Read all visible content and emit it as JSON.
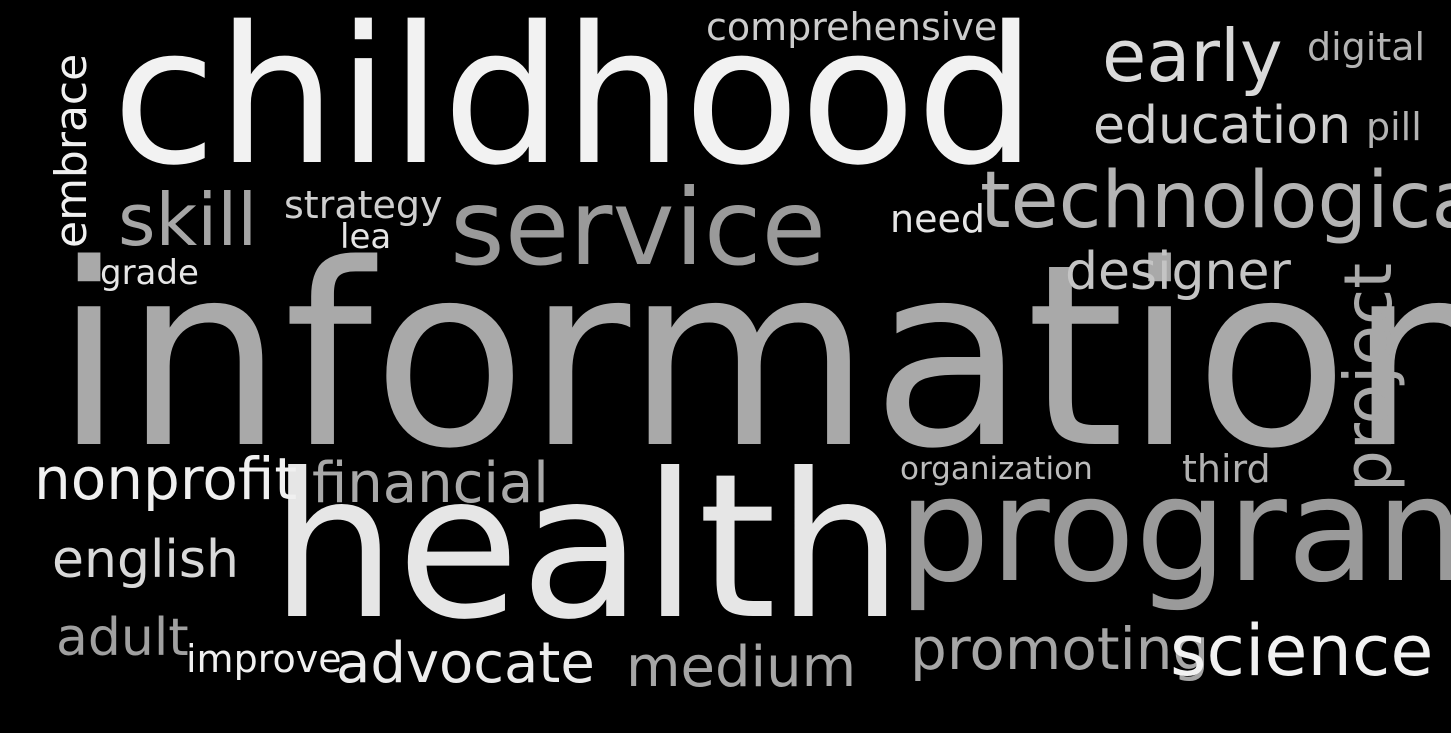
{
  "background": "#000000",
  "words": [
    {
      "id": "information",
      "text": "information",
      "color": "#a9a9a9"
    },
    {
      "id": "childhood",
      "text": "childhood",
      "color": "#f2f2f2"
    },
    {
      "id": "health",
      "text": "health",
      "color": "#e6e6e6"
    },
    {
      "id": "program",
      "text": "program",
      "color": "#9a9a9a"
    },
    {
      "id": "service",
      "text": "service",
      "color": "#9a9a9a"
    },
    {
      "id": "technological",
      "text": "technological",
      "color": "#b3b3b3"
    },
    {
      "id": "early",
      "text": "early",
      "color": "#d9d9d9"
    },
    {
      "id": "education",
      "text": "education",
      "color": "#d0d0d0"
    },
    {
      "id": "digital",
      "text": "digital",
      "color": "#b3b3b3"
    },
    {
      "id": "pill",
      "text": "pill",
      "color": "#b3b3b3"
    },
    {
      "id": "comprehensive",
      "text": "comprehensive",
      "color": "#cccccc"
    },
    {
      "id": "embrace",
      "text": "embrace",
      "color": "#f0f0f0"
    },
    {
      "id": "skill",
      "text": "skill",
      "color": "#a6a6a6"
    },
    {
      "id": "strategy",
      "text": "strategy",
      "color": "#cfcfcf"
    },
    {
      "id": "lea",
      "text": "lea",
      "color": "#e6e6e6"
    },
    {
      "id": "need",
      "text": "need",
      "color": "#e6e6e6"
    },
    {
      "id": "grade",
      "text": "grade",
      "color": "#e6e6e6"
    },
    {
      "id": "designer",
      "text": "designer",
      "color": "#c4c4c4"
    },
    {
      "id": "project",
      "text": "project",
      "color": "#a9a9a9"
    },
    {
      "id": "nonprofit",
      "text": "nonprofit",
      "color": "#f0f0f0"
    },
    {
      "id": "financial",
      "text": "financial",
      "color": "#a9a9a9"
    },
    {
      "id": "organization",
      "text": "organization",
      "color": "#bcbcbc"
    },
    {
      "id": "third",
      "text": "third",
      "color": "#b0b0b0"
    },
    {
      "id": "english",
      "text": "english",
      "color": "#d9d9d9"
    },
    {
      "id": "adult",
      "text": "adult",
      "color": "#a0a0a0"
    },
    {
      "id": "improve",
      "text": "improve",
      "color": "#f0f0f0"
    },
    {
      "id": "advocate",
      "text": "advocate",
      "color": "#ececec"
    },
    {
      "id": "medium",
      "text": "medium",
      "color": "#a6a6a6"
    },
    {
      "id": "promoting",
      "text": "promoting",
      "color": "#a6a6a6"
    },
    {
      "id": "science",
      "text": "science",
      "color": "#f2f2f2"
    }
  ]
}
